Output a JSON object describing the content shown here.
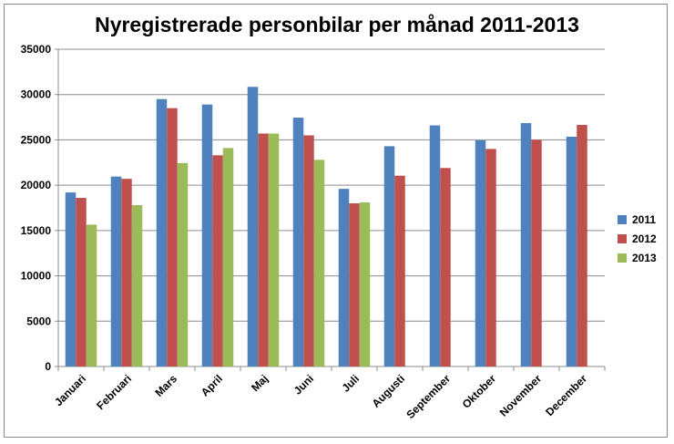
{
  "chart_data": {
    "type": "bar",
    "title": "Nyregistrerade personbilar per månad 2011-2013",
    "xlabel": "",
    "ylabel": "",
    "ylim": [
      0,
      35000
    ],
    "yticks": [
      "0",
      "5000",
      "10000",
      "15000",
      "20000",
      "25000",
      "30000",
      "35000"
    ],
    "grid": true,
    "legend_position": "right",
    "categories": [
      "Januari",
      "Februari",
      "Mars",
      "April",
      "Maj",
      "Juni",
      "Juli",
      "Augusti",
      "September",
      "Oktober",
      "November",
      "December"
    ],
    "series": [
      {
        "name": "2011",
        "color": "#4f81bd",
        "values": [
          19200,
          20950,
          29500,
          28900,
          30850,
          27450,
          19600,
          24300,
          26600,
          24950,
          26850,
          25350
        ]
      },
      {
        "name": "2012",
        "color": "#c0504d",
        "values": [
          18600,
          20700,
          28500,
          23300,
          25700,
          25500,
          18000,
          21050,
          21900,
          24000,
          25000,
          26650
        ]
      },
      {
        "name": "2013",
        "color": "#9bbb59",
        "values": [
          15650,
          17800,
          22450,
          24100,
          25700,
          22800,
          18100,
          null,
          null,
          null,
          null,
          null
        ]
      }
    ]
  }
}
